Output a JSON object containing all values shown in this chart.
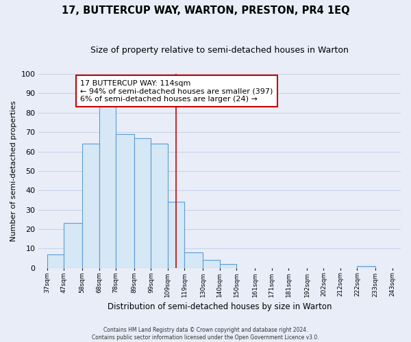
{
  "title": "17, BUTTERCUP WAY, WARTON, PRESTON, PR4 1EQ",
  "subtitle": "Size of property relative to semi-detached houses in Warton",
  "xlabel": "Distribution of semi-detached houses by size in Warton",
  "ylabel": "Number of semi-detached properties",
  "bar_left_edges": [
    37,
    47,
    58,
    68,
    78,
    89,
    99,
    109,
    119,
    130,
    140,
    150,
    161,
    171,
    181,
    192,
    202,
    212,
    222,
    233
  ],
  "bar_widths": [
    10,
    11,
    10,
    10,
    11,
    10,
    10,
    10,
    11,
    10,
    10,
    11,
    10,
    10,
    11,
    10,
    10,
    10,
    11,
    10
  ],
  "bar_heights": [
    7,
    23,
    64,
    83,
    69,
    67,
    64,
    34,
    8,
    4,
    2,
    0,
    0,
    0,
    0,
    0,
    0,
    0,
    1,
    0
  ],
  "tick_labels": [
    "37sqm",
    "47sqm",
    "58sqm",
    "68sqm",
    "78sqm",
    "89sqm",
    "99sqm",
    "109sqm",
    "119sqm",
    "130sqm",
    "140sqm",
    "150sqm",
    "161sqm",
    "171sqm",
    "181sqm",
    "192sqm",
    "202sqm",
    "212sqm",
    "222sqm",
    "233sqm",
    "243sqm"
  ],
  "tick_positions": [
    37,
    47,
    58,
    68,
    78,
    89,
    99,
    109,
    119,
    130,
    140,
    150,
    161,
    171,
    181,
    192,
    202,
    212,
    222,
    233,
    243
  ],
  "bar_color": "#d6e8f5",
  "bar_edge_color": "#5b9bd5",
  "vline_x": 114,
  "vline_color": "#cc0000",
  "ylim": [
    0,
    100
  ],
  "xlim": [
    32,
    248
  ],
  "annotation_title": "17 BUTTERCUP WAY: 114sqm",
  "annotation_line1": "← 94% of semi-detached houses are smaller (397)",
  "annotation_line2": "6% of semi-detached houses are larger (24) →",
  "footer_line1": "Contains HM Land Registry data © Crown copyright and database right 2024.",
  "footer_line2": "Contains public sector information licensed under the Open Government Licence v3.0.",
  "background_color": "#e8edf8",
  "grid_color": "#c8d4e8",
  "title_fontsize": 10.5,
  "subtitle_fontsize": 9,
  "xlabel_fontsize": 8.5,
  "ylabel_fontsize": 8,
  "tick_fontsize": 6.5,
  "ytick_fontsize": 8,
  "footer_fontsize": 5.5,
  "ann_fontsize": 8
}
